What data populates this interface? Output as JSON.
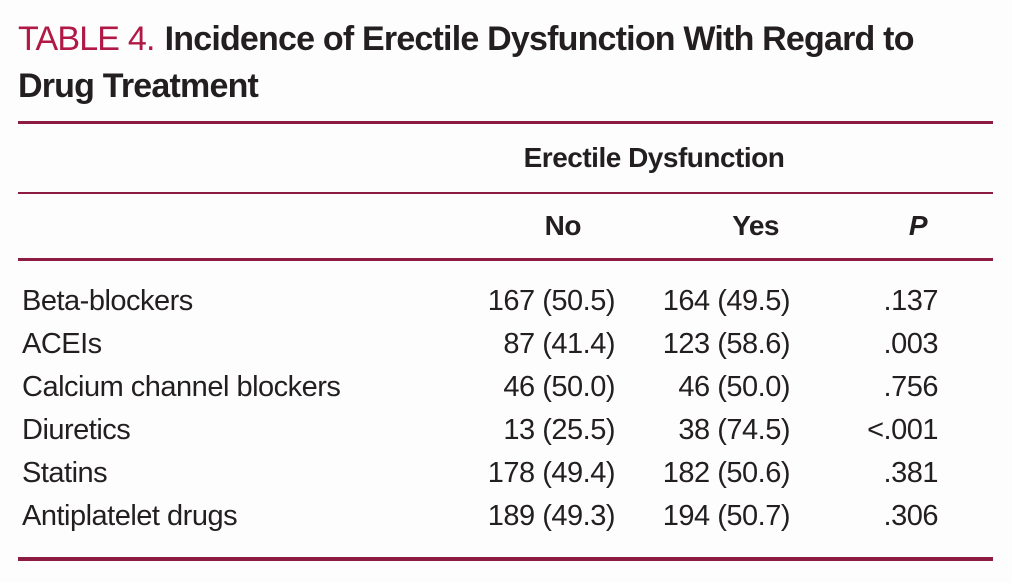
{
  "title": {
    "label": "TABLE 4.",
    "text": "Incidence of Erectile Dysfunction With Regard to Drug Treatment"
  },
  "table": {
    "group_header": "Erectile Dysfunction",
    "columns": [
      {
        "key": "no",
        "label": "No"
      },
      {
        "key": "yes",
        "label": "Yes"
      },
      {
        "key": "p",
        "label": "P"
      }
    ],
    "rows": [
      {
        "drug": "Beta-blockers",
        "no": "167 (50.5)",
        "yes": "164 (49.5)",
        "p": ".137"
      },
      {
        "drug": "ACEIs",
        "no": "87 (41.4)",
        "yes": "123 (58.6)",
        "p": ".003"
      },
      {
        "drug": "Calcium channel blockers",
        "no": "46 (50.0)",
        "yes": "46 (50.0)",
        "p": ".756"
      },
      {
        "drug": "Diuretics",
        "no": "13 (25.5)",
        "yes": "38 (74.5)",
        "p": "<.001"
      },
      {
        "drug": "Statins",
        "no": "178 (49.4)",
        "yes": "182 (50.6)",
        "p": ".381"
      },
      {
        "drug": "Antiplatelet drugs",
        "no": "189 (49.3)",
        "yes": "194 (50.7)",
        "p": ".306"
      }
    ]
  },
  "colors": {
    "accent_label": "#b01845",
    "rule": "#8d1b42",
    "text": "#231f20",
    "background": "#fdfdfd"
  }
}
